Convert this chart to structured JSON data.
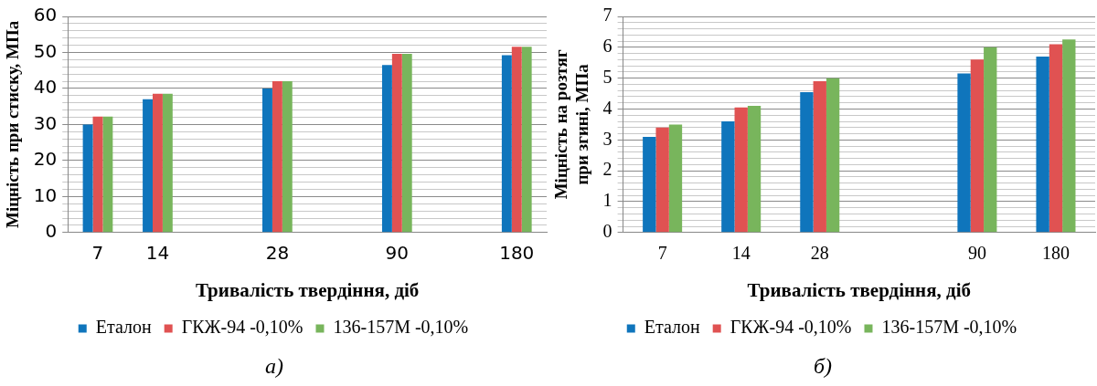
{
  "chart_data": [
    {
      "type": "bar",
      "xlabel": "Тривалість твердіння, діб",
      "ylabel": "Міцність при стиску, МПа",
      "categories": [
        "7",
        "14",
        null,
        "28",
        null,
        "90",
        null,
        "180"
      ],
      "series": [
        {
          "name": "Еталон",
          "color": "#0f75bc",
          "values": [
            30,
            37,
            null,
            40,
            null,
            46.5,
            null,
            49.2
          ]
        },
        {
          "name": "ГКЖ-94 -0,10%",
          "color": "#e05252",
          "values": [
            32.2,
            38.5,
            null,
            42,
            null,
            49.6,
            null,
            51.6
          ]
        },
        {
          "name": "136-157М -0,10%",
          "color": "#78b55c",
          "values": [
            32.2,
            38.5,
            null,
            42,
            null,
            49.6,
            null,
            51.6
          ]
        }
      ],
      "ylim": [
        0,
        60
      ],
      "yticks": [
        0,
        {
          "value": 2,
          "label": null
        },
        {
          "value": 4,
          "label": null
        },
        {
          "value": 6,
          "label": null
        },
        {
          "value": 8,
          "label": null
        },
        10,
        {
          "value": 12,
          "label": null
        },
        {
          "value": 14,
          "label": null
        },
        {
          "value": 16,
          "label": null
        },
        {
          "value": 18,
          "label": null
        },
        20,
        {
          "value": 22,
          "label": null
        },
        {
          "value": 24,
          "label": null
        },
        {
          "value": 26,
          "label": null
        },
        {
          "value": 28,
          "label": null
        },
        30,
        {
          "value": 32,
          "label": null
        },
        {
          "value": 34,
          "label": null
        },
        {
          "value": 36,
          "label": null
        },
        {
          "value": 38,
          "label": null
        },
        40,
        {
          "value": 42,
          "label": null
        },
        {
          "value": 44,
          "label": null
        },
        {
          "value": 46,
          "label": null
        },
        {
          "value": 48,
          "label": null
        },
        50,
        {
          "value": 52,
          "label": null
        },
        {
          "value": 54,
          "label": null
        },
        {
          "value": 56,
          "label": null
        },
        {
          "value": 58,
          "label": null
        },
        60
      ],
      "grid": "y",
      "legend": "bottom",
      "annotations": [
        "а)"
      ]
    },
    {
      "type": "bar",
      "xlabel": "Тривалість твердіння, діб",
      "ylabel": "Міцність на розтяг при згині, МПа",
      "categories": [
        "7",
        "14",
        "28",
        null,
        "90",
        "180"
      ],
      "series": [
        {
          "name": "Еталон",
          "color": "#0f75bc",
          "values": [
            3.1,
            3.6,
            4.55,
            null,
            5.15,
            5.7
          ]
        },
        {
          "name": "ГКЖ-94 -0,10%",
          "color": "#e05252",
          "values": [
            3.4,
            4.05,
            4.9,
            null,
            5.6,
            6.1
          ]
        },
        {
          "name": "136-157М -0,10%",
          "color": "#78b55c",
          "values": [
            3.5,
            4.1,
            5.0,
            null,
            6.0,
            6.25
          ]
        }
      ],
      "ylim": [
        0,
        7
      ],
      "yticks": [
        0,
        {
          "value": 0.2,
          "label": null
        },
        {
          "value": 0.4,
          "label": null
        },
        {
          "value": 0.6,
          "label": null
        },
        {
          "value": 0.8,
          "label": null
        },
        1,
        {
          "value": 1.2,
          "label": null
        },
        {
          "value": 1.4,
          "label": null
        },
        {
          "value": 1.6,
          "label": null
        },
        {
          "value": 1.8,
          "label": null
        },
        2,
        {
          "value": 2.2,
          "label": null
        },
        {
          "value": 2.4,
          "label": null
        },
        {
          "value": 2.6,
          "label": null
        },
        {
          "value": 2.8,
          "label": null
        },
        3,
        {
          "value": 3.2,
          "label": null
        },
        {
          "value": 3.4,
          "label": null
        },
        {
          "value": 3.6,
          "label": null
        },
        {
          "value": 3.8,
          "label": null
        },
        4,
        {
          "value": 4.2,
          "label": null
        },
        {
          "value": 4.4,
          "label": null
        },
        {
          "value": 4.6,
          "label": null
        },
        {
          "value": 4.8,
          "label": null
        },
        5,
        {
          "value": 5.2,
          "label": null
        },
        {
          "value": 5.4,
          "label": null
        },
        {
          "value": 5.6,
          "label": null
        },
        {
          "value": 5.8,
          "label": null
        },
        6,
        {
          "value": 6.2,
          "label": null
        },
        {
          "value": 6.4,
          "label": null
        },
        {
          "value": 6.6,
          "label": null
        },
        {
          "value": 6.8,
          "label": null
        },
        7
      ],
      "grid": "y",
      "legend": "bottom",
      "annotations": [
        "б)"
      ]
    }
  ]
}
